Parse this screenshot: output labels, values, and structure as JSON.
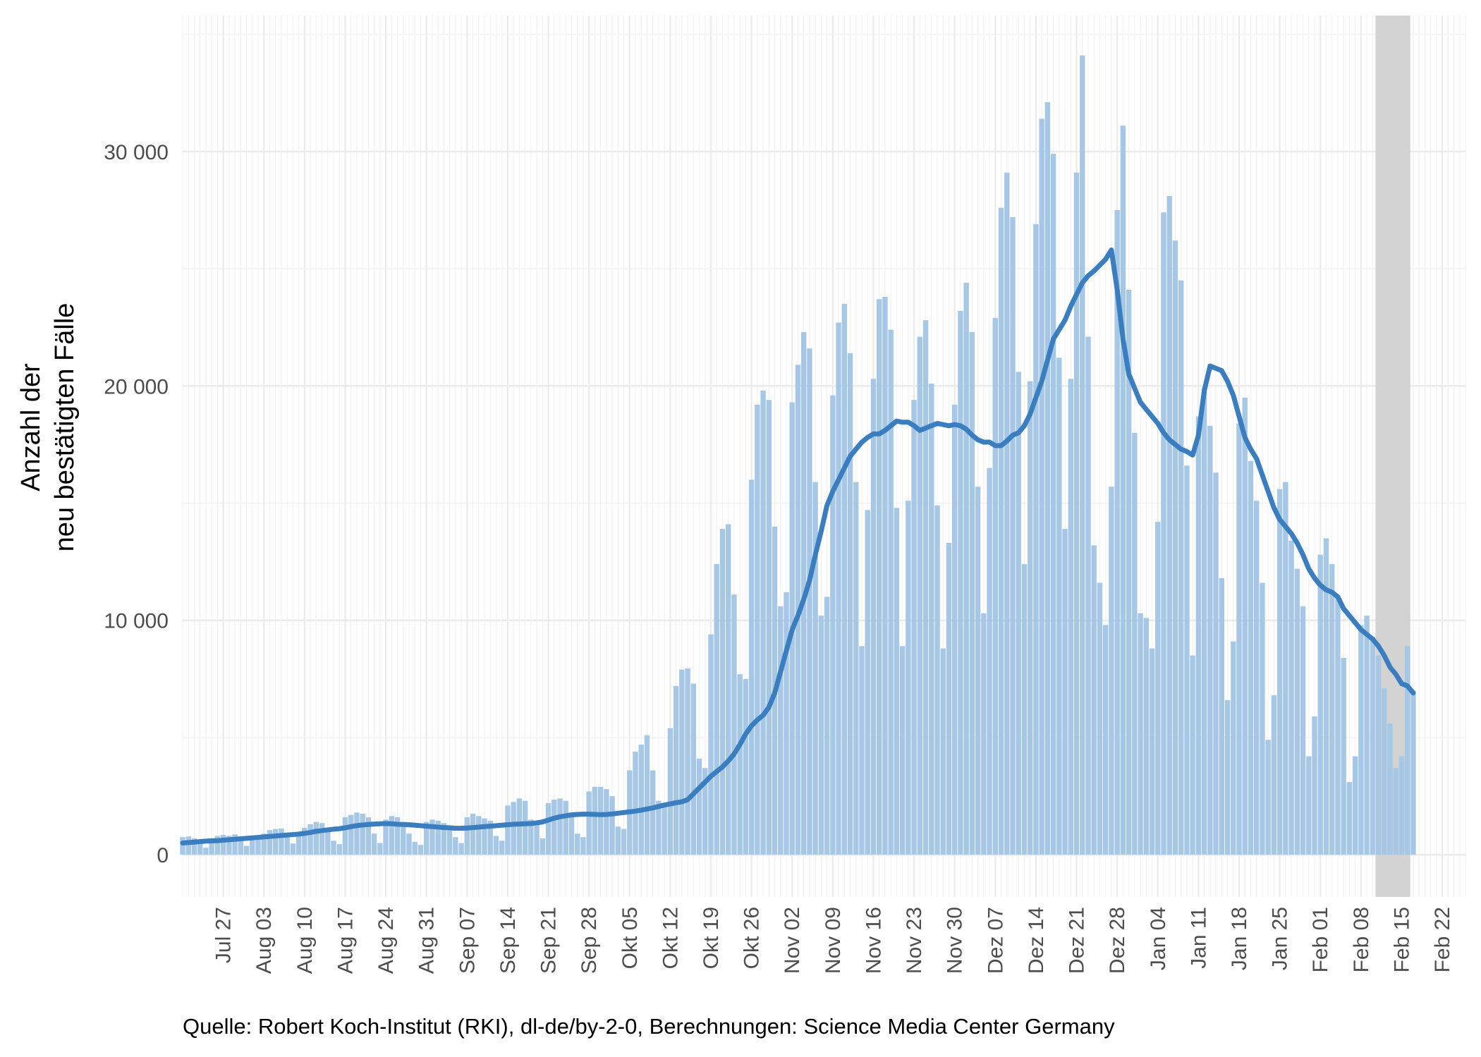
{
  "chart_data": {
    "type": "bar",
    "ylabel_lines": [
      "Anzahl der",
      "neu bestätigten Fälle"
    ],
    "caption": "Quelle: Robert Koch-Institut (RKI), dl-de/by-2-0, Berechnungen: Science Media Center Germany",
    "ylim": [
      -1800,
      35800
    ],
    "y_ticks": [
      0,
      10000,
      20000,
      30000
    ],
    "y_tick_labels": [
      "0",
      "10 000",
      "20 000",
      "30 000"
    ],
    "x_start_date": "2020-07-20",
    "x_end_date": "2021-02-26",
    "x_ticks": [
      {
        "date": "2020-07-27",
        "label": "Jul 27"
      },
      {
        "date": "2020-08-03",
        "label": "Aug 03"
      },
      {
        "date": "2020-08-10",
        "label": "Aug 10"
      },
      {
        "date": "2020-08-17",
        "label": "Aug 17"
      },
      {
        "date": "2020-08-24",
        "label": "Aug 24"
      },
      {
        "date": "2020-08-31",
        "label": "Aug 31"
      },
      {
        "date": "2020-09-07",
        "label": "Sep 07"
      },
      {
        "date": "2020-09-14",
        "label": "Sep 14"
      },
      {
        "date": "2020-09-21",
        "label": "Sep 21"
      },
      {
        "date": "2020-09-28",
        "label": "Sep 28"
      },
      {
        "date": "2020-10-05",
        "label": "Okt 05"
      },
      {
        "date": "2020-10-12",
        "label": "Okt 12"
      },
      {
        "date": "2020-10-19",
        "label": "Okt 19"
      },
      {
        "date": "2020-10-26",
        "label": "Okt 26"
      },
      {
        "date": "2020-11-02",
        "label": "Nov 02"
      },
      {
        "date": "2020-11-09",
        "label": "Nov 09"
      },
      {
        "date": "2020-11-16",
        "label": "Nov 16"
      },
      {
        "date": "2020-11-23",
        "label": "Nov 23"
      },
      {
        "date": "2020-11-30",
        "label": "Nov 30"
      },
      {
        "date": "2020-12-07",
        "label": "Dez 07"
      },
      {
        "date": "2020-12-14",
        "label": "Dez 14"
      },
      {
        "date": "2020-12-21",
        "label": "Dez 21"
      },
      {
        "date": "2020-12-28",
        "label": "Dez 28"
      },
      {
        "date": "2021-01-04",
        "label": "Jan 04"
      },
      {
        "date": "2021-01-11",
        "label": "Jan 11"
      },
      {
        "date": "2021-01-18",
        "label": "Jan 18"
      },
      {
        "date": "2021-01-25",
        "label": "Jan 25"
      },
      {
        "date": "2021-02-01",
        "label": "Feb 01"
      },
      {
        "date": "2021-02-08",
        "label": "Feb 08"
      },
      {
        "date": "2021-02-15",
        "label": "Feb 15"
      },
      {
        "date": "2021-02-22",
        "label": "Feb 22"
      }
    ],
    "bar_start_date": "2020-07-20",
    "shaded_period": {
      "start": "2021-02-11",
      "end": "2021-02-16"
    },
    "series": [
      {
        "name": "",
        "kind": "bar",
        "color": "#a6c8e6",
        "values": [
          750,
          780,
          700,
          620,
          300,
          710,
          800,
          850,
          810,
          870,
          650,
          380,
          680,
          770,
          900,
          1050,
          1100,
          1120,
          900,
          480,
          810,
          1150,
          1300,
          1400,
          1350,
          1150,
          600,
          450,
          1600,
          1700,
          1800,
          1750,
          1600,
          900,
          500,
          1500,
          1650,
          1600,
          1400,
          900,
          550,
          420,
          1400,
          1500,
          1450,
          1350,
          1250,
          750,
          500,
          1600,
          1750,
          1650,
          1550,
          1450,
          800,
          600,
          2100,
          2250,
          2400,
          2300,
          1500,
          1300,
          700,
          2200,
          2350,
          2400,
          2300,
          1800,
          900,
          750,
          2700,
          2900,
          2900,
          2800,
          2500,
          1200,
          1100,
          3600,
          4400,
          4700,
          5100,
          3600,
          2300,
          2200,
          5400,
          7200,
          7900,
          7950,
          7300,
          4100,
          3700,
          9400,
          12400,
          13900,
          14100,
          11100,
          7700,
          7500,
          16000,
          19200,
          19800,
          19400,
          14000,
          10600,
          11200,
          19300,
          20900,
          22300,
          21600,
          15900,
          10200,
          11000,
          19600,
          22700,
          23500,
          21400,
          15900,
          8900,
          14700,
          20300,
          23700,
          23800,
          22400,
          14800,
          8900,
          15100,
          19400,
          22100,
          22800,
          20100,
          14900,
          8800,
          13300,
          19200,
          23200,
          24400,
          22300,
          15700,
          10300,
          16500,
          22900,
          27600,
          29100,
          27200,
          20600,
          12400,
          20200,
          26900,
          31400,
          32100,
          29900,
          21200,
          13900,
          20300,
          29100,
          34100,
          22100,
          13200,
          11600,
          9800,
          15700,
          27500,
          31100,
          24100,
          18000,
          10300,
          10100,
          8800,
          14200,
          27400,
          28100,
          26200,
          24500,
          16600,
          8500,
          18700,
          19900,
          18300,
          16300,
          11800,
          6600,
          9100,
          18400,
          19500,
          16800,
          15100,
          11600,
          4900,
          6800,
          15600,
          15900,
          13400,
          12200,
          10600,
          4200,
          5900,
          12800,
          13500,
          12400,
          11000,
          8400,
          3100,
          4200,
          9800,
          10200,
          9300,
          8500,
          7100,
          5600,
          3700,
          4200,
          8900,
          7000
        ]
      },
      {
        "name": "",
        "kind": "line",
        "color": "#3b7ec0",
        "values": [
          500,
          520,
          540,
          560,
          580,
          590,
          600,
          620,
          640,
          660,
          680,
          700,
          720,
          740,
          760,
          780,
          800,
          820,
          840,
          860,
          880,
          910,
          950,
          1000,
          1030,
          1060,
          1090,
          1110,
          1150,
          1200,
          1240,
          1270,
          1290,
          1310,
          1320,
          1330,
          1320,
          1300,
          1290,
          1280,
          1260,
          1240,
          1220,
          1200,
          1180,
          1160,
          1150,
          1130,
          1130,
          1140,
          1160,
          1180,
          1200,
          1220,
          1240,
          1260,
          1280,
          1300,
          1310,
          1320,
          1330,
          1360,
          1400,
          1480,
          1560,
          1620,
          1660,
          1700,
          1720,
          1730,
          1730,
          1720,
          1710,
          1720,
          1740,
          1770,
          1800,
          1830,
          1860,
          1900,
          1950,
          2000,
          2060,
          2120,
          2170,
          2220,
          2260,
          2350,
          2600,
          2850,
          3100,
          3350,
          3550,
          3750,
          4000,
          4300,
          4700,
          5150,
          5500,
          5750,
          5950,
          6300,
          6900,
          7800,
          8700,
          9600,
          10200,
          10900,
          11700,
          12800,
          13800,
          14900,
          15500,
          16000,
          16500,
          17000,
          17300,
          17600,
          17800,
          17950,
          17950,
          18100,
          18300,
          18500,
          18450,
          18450,
          18300,
          18100,
          18200,
          18300,
          18400,
          18350,
          18300,
          18350,
          18300,
          18150,
          17900,
          17700,
          17600,
          17600,
          17450,
          17450,
          17650,
          17900,
          18000,
          18300,
          18800,
          19500,
          20200,
          21100,
          22000,
          22400,
          22800,
          23400,
          23900,
          24400,
          24700,
          24900,
          25150,
          25400,
          25800,
          24100,
          22000,
          20500,
          19900,
          19300,
          19000,
          18700,
          18400,
          18000,
          17700,
          17500,
          17300,
          17200,
          17050,
          17900,
          19800,
          20850,
          20750,
          20650,
          20200,
          19600,
          18700,
          17800,
          17300,
          16900,
          16200,
          15500,
          14800,
          14300,
          14000,
          13700,
          13300,
          12800,
          12200,
          11800,
          11500,
          11300,
          11200,
          11000,
          10500,
          10200,
          9900,
          9600,
          9400,
          9200,
          8900,
          8500,
          8000,
          7700,
          7300,
          7200,
          6900
        ]
      }
    ]
  }
}
